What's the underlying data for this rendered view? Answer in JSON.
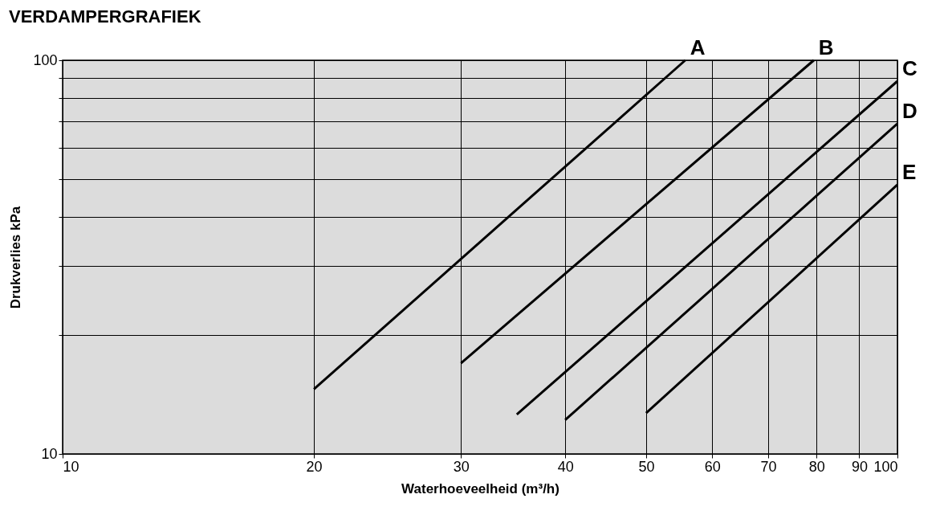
{
  "chart_data": {
    "type": "line",
    "title": "VERDAMPERGRAFIEK",
    "xlabel": "Waterhoeveelheid (m³/h)",
    "ylabel": "Drukverlies kPa",
    "log": "xy",
    "grid": true,
    "legend": false,
    "marker": "none",
    "line_style": "solid",
    "xlim": [
      10,
      100
    ],
    "ylim": [
      10,
      100
    ],
    "xticks": [
      10,
      20,
      30,
      40,
      50,
      60,
      70,
      80,
      90,
      100
    ],
    "yticks": [
      10,
      {
        "value": 20,
        "label": null
      },
      {
        "value": 30,
        "label": null
      },
      {
        "value": 40,
        "label": null
      },
      {
        "value": 50,
        "label": null
      },
      {
        "value": 60,
        "label": null
      },
      {
        "value": 70,
        "label": null
      },
      {
        "value": 80,
        "label": null
      },
      {
        "value": 90,
        "label": null
      },
      100
    ],
    "series": [
      {
        "name": "A",
        "color": "#000000",
        "x": [
          20,
          55.7
        ],
        "values": [
          14.6,
          100
        ]
      },
      {
        "name": "B",
        "color": "#000000",
        "x": [
          30,
          79.4
        ],
        "values": [
          17,
          100
        ]
      },
      {
        "name": "C",
        "color": "#000000",
        "x": [
          35,
          100
        ],
        "values": [
          12.6,
          88.5
        ]
      },
      {
        "name": "D",
        "color": "#000000",
        "x": [
          40,
          100
        ],
        "values": [
          12.2,
          69
        ]
      },
      {
        "name": "E",
        "color": "#000000",
        "x": [
          50,
          100
        ],
        "values": [
          12.7,
          48.3
        ]
      }
    ]
  }
}
